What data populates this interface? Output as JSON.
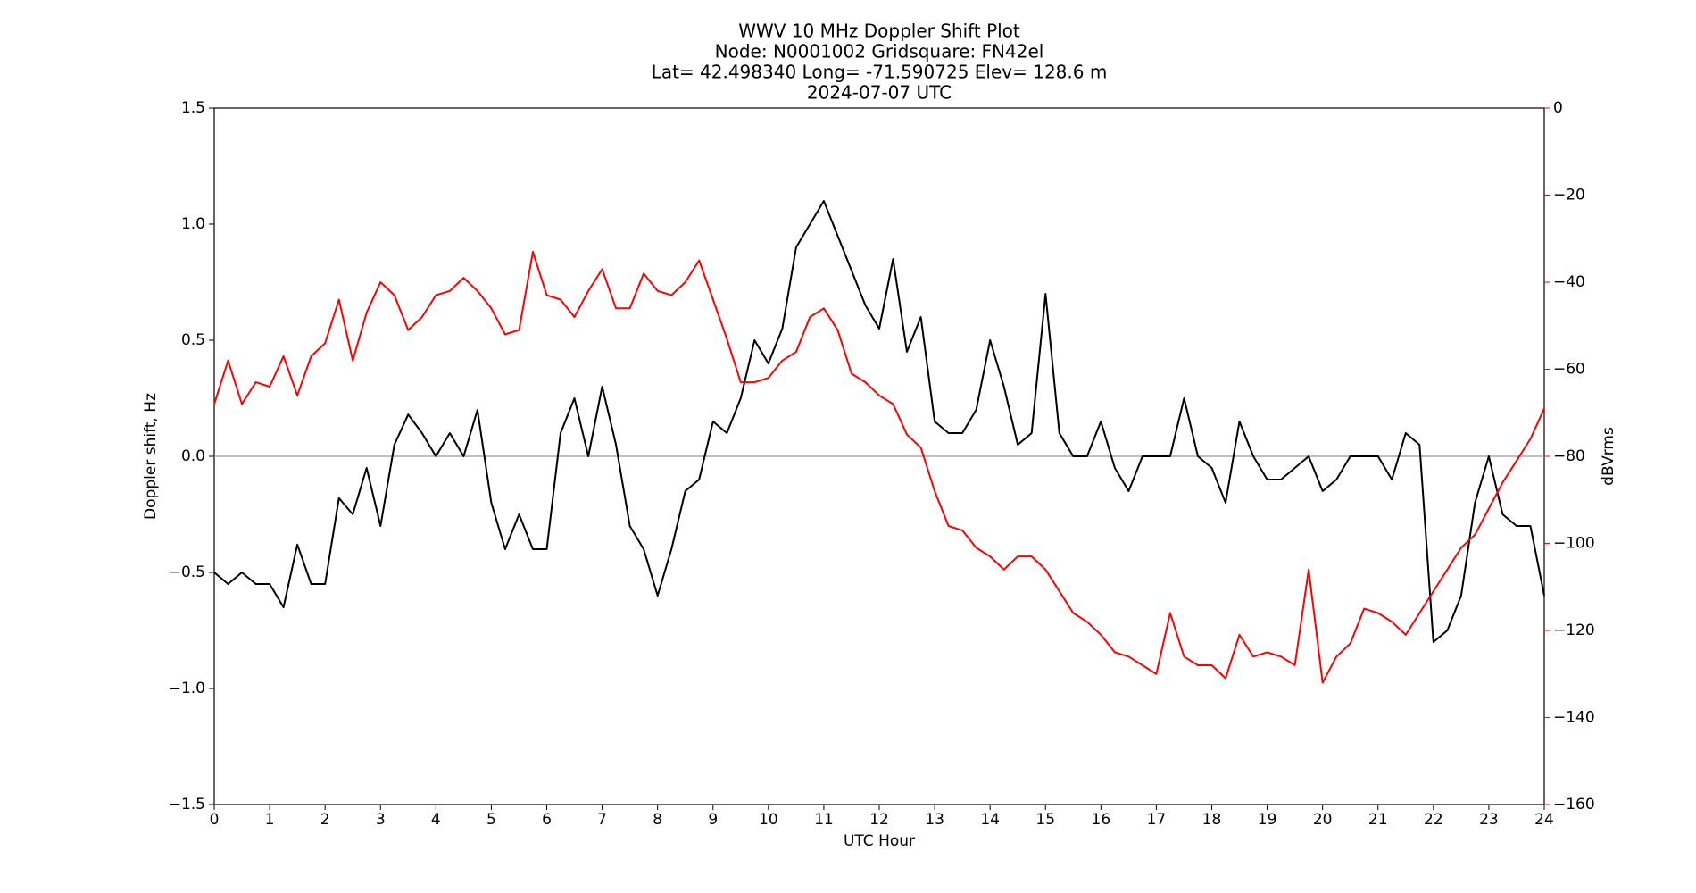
{
  "chart_data": {
    "type": "line",
    "title": [
      "WWV 10 MHz Doppler Shift Plot",
      "Node:  N0001002     Gridsquare:  FN42el",
      "Lat= 42.498340    Long= -71.590725    Elev= 128.6 m",
      "2024-07-07  UTC"
    ],
    "x_label": "UTC Hour",
    "y_label": "Doppler shift, Hz",
    "y2_label": "dBVrms",
    "x": [
      0,
      0.25,
      0.5,
      0.75,
      1,
      1.25,
      1.5,
      1.75,
      2,
      2.25,
      2.5,
      2.75,
      3,
      3.25,
      3.5,
      3.75,
      4,
      4.25,
      4.5,
      4.75,
      5,
      5.25,
      5.5,
      5.75,
      6,
      6.25,
      6.5,
      6.75,
      7,
      7.25,
      7.5,
      7.75,
      8,
      8.25,
      8.5,
      8.75,
      9,
      9.25,
      9.5,
      9.75,
      10,
      10.25,
      10.5,
      10.75,
      11,
      11.25,
      11.5,
      11.75,
      12,
      12.25,
      12.5,
      12.75,
      13,
      13.25,
      13.5,
      13.75,
      14,
      14.25,
      14.5,
      14.75,
      15,
      15.25,
      15.5,
      15.75,
      16,
      16.25,
      16.5,
      16.75,
      17,
      17.25,
      17.5,
      17.75,
      18,
      18.25,
      18.5,
      18.75,
      19,
      19.25,
      19.5,
      19.75,
      20,
      20.25,
      20.5,
      20.75,
      21,
      21.25,
      21.5,
      21.75,
      22,
      22.25,
      22.5,
      22.75,
      23,
      23.25,
      23.5,
      23.75,
      24
    ],
    "series": [
      {
        "name": "Doppler shift",
        "color": "#000000",
        "values": [
          -0.5,
          -0.55,
          -0.5,
          -0.55,
          -0.55,
          -0.65,
          -0.38,
          -0.55,
          -0.55,
          -0.18,
          -0.25,
          -0.05,
          -0.3,
          0.05,
          0.18,
          0.1,
          0,
          0.1,
          0,
          0.2,
          -0.2,
          -0.4,
          -0.25,
          -0.4,
          -0.4,
          0.1,
          0.25,
          0,
          0.3,
          0.05,
          -0.3,
          -0.4,
          -0.6,
          -0.4,
          -0.15,
          -0.1,
          0.15,
          0.1,
          0.25,
          0.5,
          0.4,
          0.55,
          0.9,
          1.0,
          1.1,
          0.95,
          0.8,
          0.65,
          0.55,
          0.85,
          0.45,
          0.6,
          0.15,
          0.1,
          0.1,
          0.2,
          0.5,
          0.3,
          0.05,
          0.1,
          0.7,
          0.1,
          0,
          0,
          0.15,
          -0.05,
          -0.15,
          0,
          0,
          0,
          0.25,
          0,
          -0.05,
          -0.2,
          0.15,
          0,
          -0.1,
          -0.1,
          -0.05,
          0,
          -0.15,
          -0.1,
          0,
          0,
          0,
          -0.1,
          0.1,
          0.05,
          -0.8,
          -0.75,
          -0.6,
          -0.2,
          0,
          -0.25,
          -0.3,
          -0.3,
          -0.6
        ]
      },
      {
        "name": "dBVrms",
        "color": "#ff0000",
        "axis": "y2",
        "values": [
          -68,
          -58,
          -68,
          -63,
          -64,
          -57,
          -66,
          -57,
          -54,
          -44,
          -58,
          -47,
          -40,
          -43,
          -51,
          -48,
          -43,
          -42,
          -39,
          -42,
          -46,
          -52,
          -51,
          -33,
          -43,
          -44,
          -48,
          -42,
          -37,
          -46,
          -46,
          -38,
          -42,
          -43,
          -40,
          -35,
          -44,
          -53,
          -63,
          -63,
          -62,
          -58,
          -56,
          -48,
          -46,
          -51,
          -61,
          -63,
          -66,
          -68,
          -75,
          -78,
          -88,
          -96,
          -97,
          -101,
          -103,
          -106,
          -103,
          -103,
          -106,
          -111,
          -116,
          -118,
          -121,
          -125,
          -126,
          -128,
          -130,
          -116,
          -126,
          -128,
          -128,
          -131,
          -121,
          -126,
          -125,
          -126,
          -128,
          -106,
          -132,
          -126,
          -123,
          -115,
          -116,
          -118,
          -121,
          -116,
          -111,
          -106,
          -101,
          -98,
          -92,
          -86,
          -81,
          -76,
          -69
        ]
      }
    ],
    "xlim": [
      0,
      24
    ],
    "xticks": [
      0,
      1,
      2,
      3,
      4,
      5,
      6,
      7,
      8,
      9,
      10,
      11,
      12,
      13,
      14,
      15,
      16,
      17,
      18,
      19,
      20,
      21,
      22,
      23,
      24
    ],
    "ylim": [
      -1.5,
      1.5
    ],
    "yticks": [
      {
        "value": -1.5,
        "label": "−1.5"
      },
      {
        "value": -1.0,
        "label": "−1.0"
      },
      {
        "value": -0.5,
        "label": "−0.5"
      },
      {
        "value": 0,
        "label": "0.0"
      },
      0.5,
      {
        "value": 1.0,
        "label": "1.0"
      },
      1.5
    ],
    "y2lim": [
      -160,
      0
    ],
    "y2ticks": [
      {
        "value": -160,
        "label": "−160"
      },
      {
        "value": -140,
        "label": "−140"
      },
      {
        "value": -120,
        "label": "−120"
      },
      {
        "value": -100,
        "label": "−100"
      },
      {
        "value": -80,
        "label": "−80"
      },
      {
        "value": -60,
        "label": "−60"
      },
      {
        "value": -40,
        "label": "−40"
      },
      {
        "value": -20,
        "label": "−20"
      },
      0
    ],
    "y2_color": "#ff0000",
    "hline": 0,
    "hline_color": "#999999"
  }
}
